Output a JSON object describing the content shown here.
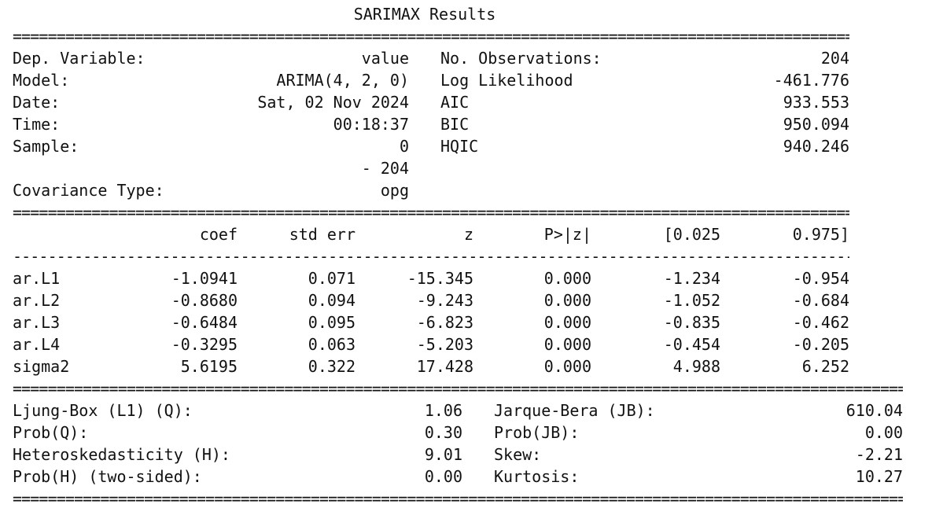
{
  "title": "SARIMAX Results",
  "rule_double": "==========================================================================================================",
  "rule_single": "----------------------------------------------------------------------------------------------------------",
  "model_info": {
    "left": [
      {
        "label": "Dep. Variable:",
        "value": "value"
      },
      {
        "label": "Model:",
        "value": "ARIMA(4, 2, 0)"
      },
      {
        "label": "Date:",
        "value": "Sat, 02 Nov 2024"
      },
      {
        "label": "Time:",
        "value": "00:18:37"
      },
      {
        "label": "Sample:",
        "value": "0"
      },
      {
        "label": "",
        "value": "- 204"
      },
      {
        "label": "Covariance Type:",
        "value": "opg"
      }
    ],
    "right": [
      {
        "label": "No. Observations:",
        "value": "204"
      },
      {
        "label": "Log Likelihood",
        "value": "-461.776"
      },
      {
        "label": "AIC",
        "value": "933.553"
      },
      {
        "label": "BIC",
        "value": "950.094"
      },
      {
        "label": "HQIC",
        "value": "940.246"
      }
    ]
  },
  "coef_table": {
    "headers": [
      "coef",
      "std err",
      "z",
      "P>|z|",
      "[0.025",
      "0.975]"
    ],
    "rows": [
      {
        "name": "ar.L1",
        "values": [
          "-1.0941",
          "0.071",
          "-15.345",
          "0.000",
          "-1.234",
          "-0.954"
        ]
      },
      {
        "name": "ar.L2",
        "values": [
          "-0.8680",
          "0.094",
          "-9.243",
          "0.000",
          "-1.052",
          "-0.684"
        ]
      },
      {
        "name": "ar.L3",
        "values": [
          "-0.6484",
          "0.095",
          "-6.823",
          "0.000",
          "-0.835",
          "-0.462"
        ]
      },
      {
        "name": "ar.L4",
        "values": [
          "-0.3295",
          "0.063",
          "-5.203",
          "0.000",
          "-0.454",
          "-0.205"
        ]
      },
      {
        "name": "sigma2",
        "values": [
          "5.6195",
          "0.322",
          "17.428",
          "0.000",
          "4.988",
          "6.252"
        ]
      }
    ]
  },
  "diagnostics": {
    "left": [
      {
        "label": "Ljung-Box (L1) (Q):",
        "value": "1.06"
      },
      {
        "label": "Prob(Q):",
        "value": "0.30"
      },
      {
        "label": "Heteroskedasticity (H):",
        "value": "9.01"
      },
      {
        "label": "Prob(H) (two-sided):",
        "value": "0.00"
      }
    ],
    "right": [
      {
        "label": "Jarque-Bera (JB):",
        "value": "610.04"
      },
      {
        "label": "Prob(JB):",
        "value": "0.00"
      },
      {
        "label": "Skew:",
        "value": "-2.21"
      },
      {
        "label": "Kurtosis:",
        "value": "10.27"
      }
    ]
  }
}
